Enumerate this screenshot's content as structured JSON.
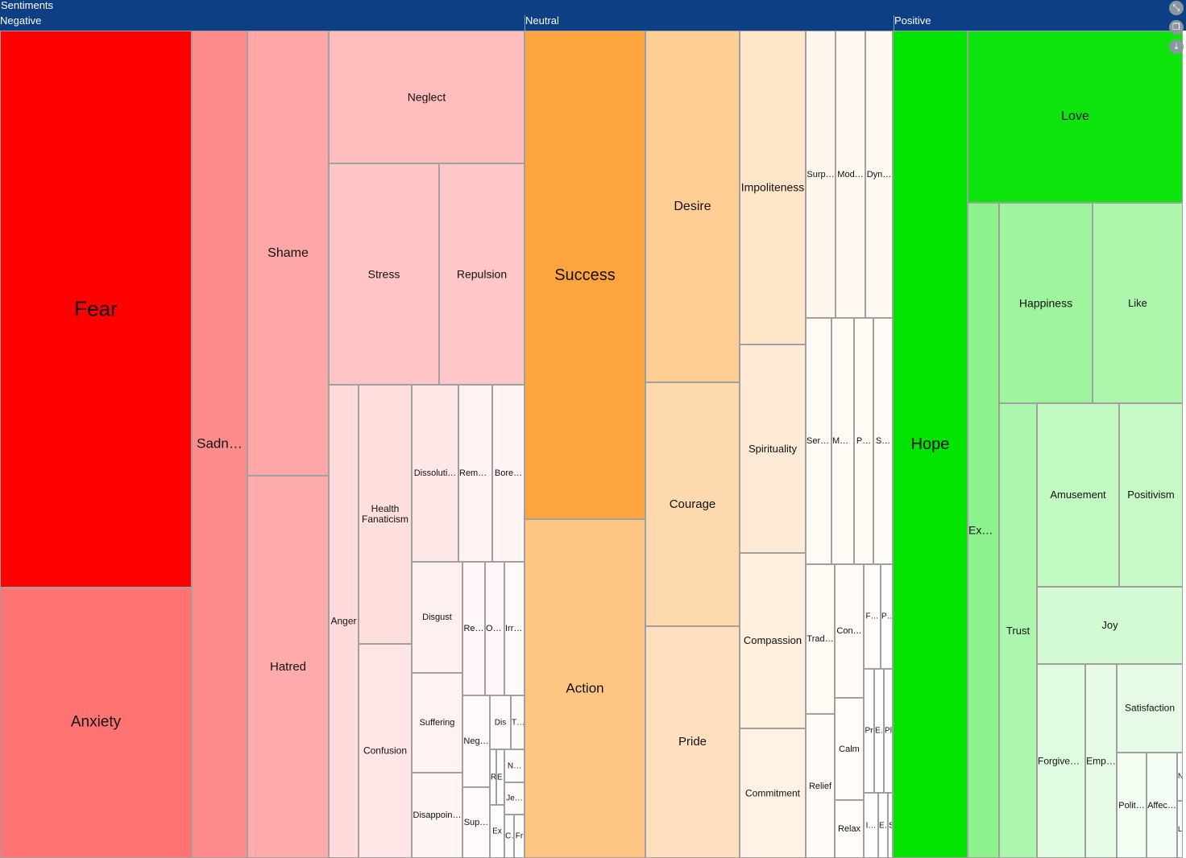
{
  "header": {
    "root_label": "Sentiments"
  },
  "groups": [
    {
      "name": "Negative"
    },
    {
      "name": "Neutral"
    },
    {
      "name": "Positive"
    }
  ],
  "tools": [
    {
      "name": "collapse-icon",
      "glyph": "⤡"
    },
    {
      "name": "copy-icon",
      "glyph": "❐"
    },
    {
      "name": "download-icon",
      "glyph": "⤓"
    }
  ],
  "chart_data": {
    "type": "treemap",
    "title": "Sentiments",
    "colors": {
      "Negative": "#ff0000",
      "Neutral": "#ffa53f",
      "Positive": "#00e400"
    },
    "groups": [
      {
        "name": "Negative",
        "items": [
          {
            "label": "Fear"
          },
          {
            "label": "Anxiety"
          },
          {
            "label": "Sadn…"
          },
          {
            "label": "Shame"
          },
          {
            "label": "Hatred"
          },
          {
            "label": "Neglect"
          },
          {
            "label": "Stress"
          },
          {
            "label": "Repulsion"
          },
          {
            "label": "Anger"
          },
          {
            "label": "Health Fanaticism"
          },
          {
            "label": "Confusion"
          },
          {
            "label": "Dissoluti…"
          },
          {
            "label": "Remo…"
          },
          {
            "label": "Bore…"
          },
          {
            "label": "Disgust"
          },
          {
            "label": "Re…"
          },
          {
            "label": "Of…"
          },
          {
            "label": "Irri…"
          },
          {
            "label": "Suffering"
          },
          {
            "label": "Disappoin…"
          },
          {
            "label": "Neg…"
          },
          {
            "label": "Sup…"
          },
          {
            "label": "Dis"
          },
          {
            "label": "T…"
          },
          {
            "label": "N…"
          },
          {
            "label": "R"
          },
          {
            "label": "En"
          },
          {
            "label": "Je…"
          },
          {
            "label": "Ex"
          },
          {
            "label": "Cd"
          },
          {
            "label": "Fr"
          }
        ]
      },
      {
        "name": "Neutral",
        "items": [
          {
            "label": "Success"
          },
          {
            "label": "Action"
          },
          {
            "label": "Desire"
          },
          {
            "label": "Courage"
          },
          {
            "label": "Pride"
          },
          {
            "label": "Impoliteness"
          },
          {
            "label": "Spirituality"
          },
          {
            "label": "Compassion"
          },
          {
            "label": "Commitment"
          },
          {
            "label": "Surp…"
          },
          {
            "label": "Mod…"
          },
          {
            "label": "Dyn…"
          },
          {
            "label": "Seri…"
          },
          {
            "label": "Me…"
          },
          {
            "label": "P…"
          },
          {
            "label": "S…"
          },
          {
            "label": "Trad…"
          },
          {
            "label": "Relief"
          },
          {
            "label": "Con…"
          },
          {
            "label": "Calm"
          },
          {
            "label": "Relax"
          },
          {
            "label": "F…"
          },
          {
            "label": "Pas"
          },
          {
            "label": "Pr"
          },
          {
            "label": "Ec"
          },
          {
            "label": "Pl"
          },
          {
            "label": "I…"
          },
          {
            "label": "Ext"
          },
          {
            "label": "S"
          }
        ]
      },
      {
        "name": "Positive",
        "items": [
          {
            "label": "Hope"
          },
          {
            "label": "Love"
          },
          {
            "label": "Exc…"
          },
          {
            "label": "Happiness"
          },
          {
            "label": "Like"
          },
          {
            "label": "Trust"
          },
          {
            "label": "Amusement"
          },
          {
            "label": "Positivism"
          },
          {
            "label": "Joy"
          },
          {
            "label": "Satisfaction"
          },
          {
            "label": "Forgiven…"
          },
          {
            "label": "Emp…"
          },
          {
            "label": "Polit…"
          },
          {
            "label": "Affec…"
          },
          {
            "label": "N"
          },
          {
            "label": "L"
          }
        ]
      }
    ]
  }
}
